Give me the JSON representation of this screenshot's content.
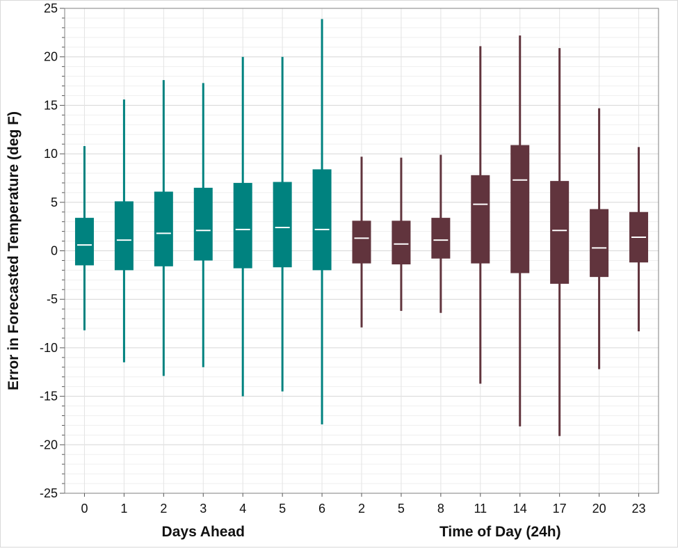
{
  "chart_data": {
    "type": "box",
    "ylabel": "Error in Forecasted Temperature (deg F)",
    "ylim": [
      -25,
      25
    ],
    "y_ticks": [
      25,
      20,
      15,
      10,
      5,
      0,
      -5,
      -10,
      -15,
      -20,
      -25
    ],
    "y_tick_labels": [
      "25",
      "20",
      "15",
      "10",
      "5",
      "0",
      "-5",
      "-10",
      "-15",
      "-20",
      "-25"
    ],
    "grid": true,
    "groups": [
      {
        "xlabel": "Days Ahead",
        "color": "#00827f",
        "boxes": [
          {
            "label": "0",
            "min": -8.2,
            "q1": -1.5,
            "median": 0.6,
            "q3": 3.4,
            "max": 10.8
          },
          {
            "label": "1",
            "min": -11.5,
            "q1": -2.0,
            "median": 1.1,
            "q3": 5.1,
            "max": 15.6
          },
          {
            "label": "2",
            "min": -12.9,
            "q1": -1.6,
            "median": 1.8,
            "q3": 6.1,
            "max": 17.6
          },
          {
            "label": "3",
            "min": -12.0,
            "q1": -1.0,
            "median": 2.1,
            "q3": 6.5,
            "max": 17.3
          },
          {
            "label": "4",
            "min": -15.0,
            "q1": -1.8,
            "median": 2.2,
            "q3": 7.0,
            "max": 20.0
          },
          {
            "label": "5",
            "min": -14.5,
            "q1": -1.7,
            "median": 2.4,
            "q3": 7.1,
            "max": 20.0
          },
          {
            "label": "6",
            "min": -17.9,
            "q1": -2.0,
            "median": 2.2,
            "q3": 8.4,
            "max": 23.9
          }
        ]
      },
      {
        "xlabel": "Time of Day (24h)",
        "color": "#61343d",
        "boxes": [
          {
            "label": "2",
            "min": -7.9,
            "q1": -1.3,
            "median": 1.3,
            "q3": 3.1,
            "max": 9.7
          },
          {
            "label": "5",
            "min": -6.2,
            "q1": -1.4,
            "median": 0.7,
            "q3": 3.1,
            "max": 9.6
          },
          {
            "label": "8",
            "min": -6.4,
            "q1": -0.8,
            "median": 1.1,
            "q3": 3.4,
            "max": 9.9
          },
          {
            "label": "11",
            "min": -13.7,
            "q1": -1.3,
            "median": 4.8,
            "q3": 7.8,
            "max": 21.1
          },
          {
            "label": "14",
            "min": -18.1,
            "q1": -2.3,
            "median": 7.3,
            "q3": 10.9,
            "max": 22.2
          },
          {
            "label": "17",
            "min": -19.1,
            "q1": -3.4,
            "median": 2.1,
            "q3": 7.2,
            "max": 20.9
          },
          {
            "label": "20",
            "min": -12.2,
            "q1": -2.7,
            "median": 0.3,
            "q3": 4.3,
            "max": 14.7
          },
          {
            "label": "23",
            "min": -8.3,
            "q1": -1.2,
            "median": 1.4,
            "q3": 4.0,
            "max": 10.7
          }
        ]
      }
    ]
  }
}
